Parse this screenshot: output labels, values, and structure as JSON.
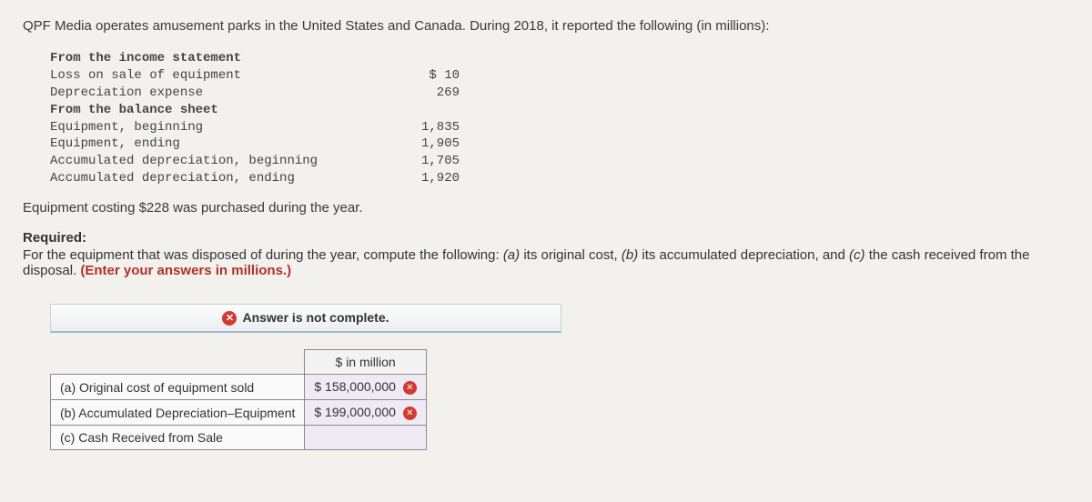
{
  "intro": "QPF Media operates amusement parks in the United States and Canada. During 2018, it reported the following (in millions):",
  "section1_head": "From the income statement",
  "rows1": [
    {
      "label": "Loss on sale of equipment",
      "value": "$ 10"
    },
    {
      "label": "Depreciation expense",
      "value": "269"
    }
  ],
  "section2_head": "From the balance sheet",
  "rows2": [
    {
      "label": "Equipment, beginning",
      "value": "1,835"
    },
    {
      "label": "Equipment, ending",
      "value": "1,905"
    },
    {
      "label": "Accumulated depreciation, beginning",
      "value": "1,705"
    },
    {
      "label": "Accumulated depreciation, ending",
      "value": "1,920"
    }
  ],
  "purchase_stmt": "Equipment costing $228 was purchased during the year.",
  "required_head": "Required:",
  "required_body_pre": "For the equipment that was disposed of during the year, compute the following: ",
  "pa": "(a)",
  "pa_text": " its original cost, ",
  "pb": "(b)",
  "pb_text": " its accumulated depreciation, and ",
  "pc": "(c)",
  "pc_text": " the cash received from the disposal. ",
  "instruction": "(Enter your answers in millions.)",
  "banner_text": "Answer is not complete.",
  "table": {
    "header": "$ in million",
    "rows": [
      {
        "label": "(a) Original cost of equipment sold",
        "value": "$ 158,000,000",
        "wrong": true
      },
      {
        "label": "(b) Accumulated Depreciation–Equipment",
        "value": "$ 199,000,000",
        "wrong": true
      },
      {
        "label": "(c) Cash Received from Sale",
        "value": "",
        "wrong": false
      }
    ]
  },
  "colors": {
    "background": "#f3f1ee",
    "text": "#333333",
    "instruction": "#b03028",
    "error_badge": "#d33a2f",
    "value_cell_bg": "#efeaf4"
  }
}
